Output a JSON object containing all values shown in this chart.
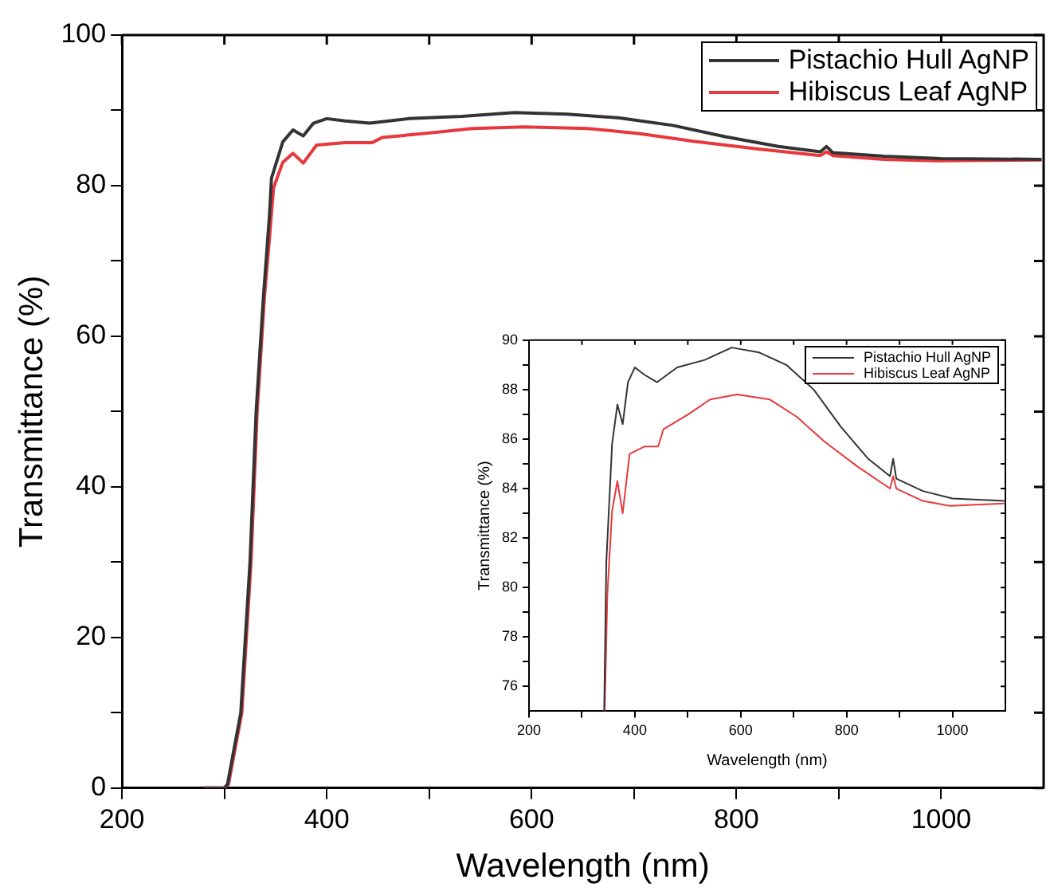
{
  "chart_data": [
    {
      "type": "line",
      "xlabel": "Wavelength (nm)",
      "ylabel": "Transmittance (%)",
      "xlim": [
        200,
        1100
      ],
      "ylim": [
        0,
        100
      ],
      "xticks": [
        200,
        {
          "value": 300,
          "label": null
        },
        400,
        {
          "value": 500,
          "label": null
        },
        600,
        {
          "value": 700,
          "label": null
        },
        800,
        {
          "value": 900,
          "label": null
        },
        1000
      ],
      "yticks": [
        0,
        {
          "value": 10,
          "label": null
        },
        20,
        {
          "value": 30,
          "label": null
        },
        40,
        {
          "value": 50,
          "label": null
        },
        60,
        {
          "value": 70,
          "label": null
        },
        80,
        {
          "value": 90,
          "label": null
        },
        100
      ],
      "legend": "top right",
      "series": [
        {
          "name": "Pistachio Hull AgNP",
          "color": "#333333",
          "x": [
            280,
            300,
            303,
            316,
            325,
            331,
            338,
            344,
            346,
            357,
            367,
            377,
            387,
            400,
            418,
            442,
            480,
            532,
            583,
            635,
            686,
            738,
            789,
            841,
            882,
            888,
            894,
            944,
            1000,
            1098
          ],
          "values": [
            0,
            0,
            0.5,
            10,
            30,
            50,
            65,
            76,
            81,
            85.8,
            87.4,
            86.6,
            88.3,
            88.9,
            88.6,
            88.3,
            88.9,
            89.2,
            89.7,
            89.5,
            89,
            88,
            86.5,
            85.2,
            84.5,
            85.2,
            84.4,
            83.9,
            83.6,
            83.5
          ]
        },
        {
          "name": "Hibiscus Leaf AgNP",
          "color": "#e8383d",
          "x": [
            280,
            300,
            304,
            317,
            326,
            332,
            339,
            344,
            348,
            357,
            367,
            377,
            390,
            418,
            444,
            454,
            501,
            542,
            593,
            655,
            706,
            758,
            820,
            882,
            888,
            894,
            944,
            995,
            1098
          ],
          "values": [
            0,
            0,
            0.5,
            10,
            30,
            50,
            65,
            73,
            79.7,
            83.1,
            84.3,
            83,
            85.4,
            85.7,
            85.7,
            86.4,
            87,
            87.6,
            87.8,
            87.6,
            86.9,
            85.9,
            84.9,
            84,
            84.5,
            84,
            83.5,
            83.3,
            83.4
          ]
        }
      ]
    },
    {
      "type": "line",
      "xlabel": "Wavelength (nm)",
      "ylabel": "Transmittance (%)",
      "xlim": [
        200,
        1100
      ],
      "ylim": [
        75,
        90
      ],
      "xticks": [
        200,
        {
          "value": 300,
          "label": null
        },
        400,
        {
          "value": 500,
          "label": null
        },
        600,
        {
          "value": 700,
          "label": null
        },
        800,
        {
          "value": 900,
          "label": null
        },
        1000
      ],
      "yticks": [
        76,
        {
          "value": 77,
          "label": null
        },
        78,
        {
          "value": 79,
          "label": null
        },
        80,
        {
          "value": 81,
          "label": null
        },
        82,
        {
          "value": 83,
          "label": null
        },
        84,
        {
          "value": 85,
          "label": null
        },
        86,
        {
          "value": 87,
          "label": null
        },
        88,
        {
          "value": 89,
          "label": null
        },
        90
      ],
      "legend": "top right",
      "series": [
        {
          "name": "Pistachio Hull AgNP",
          "color": "#333333",
          "x": [
            342,
            346,
            357,
            367,
            377,
            387,
            400,
            418,
            442,
            480,
            532,
            583,
            635,
            686,
            738,
            789,
            841,
            882,
            888,
            894,
            944,
            1000,
            1098
          ],
          "values": [
            75,
            81,
            85.8,
            87.4,
            86.6,
            88.3,
            88.9,
            88.6,
            88.3,
            88.9,
            89.2,
            89.7,
            89.5,
            89,
            88,
            86.5,
            85.2,
            84.5,
            85.2,
            84.4,
            83.9,
            83.6,
            83.5
          ]
        },
        {
          "name": "Hibiscus Leaf AgNP",
          "color": "#e8383d",
          "x": [
            343,
            348,
            357,
            367,
            377,
            390,
            418,
            444,
            454,
            501,
            542,
            593,
            655,
            706,
            758,
            820,
            882,
            888,
            894,
            944,
            995,
            1098
          ],
          "values": [
            75,
            79.7,
            83.1,
            84.3,
            83,
            85.4,
            85.7,
            85.7,
            86.4,
            87,
            87.6,
            87.8,
            87.6,
            86.9,
            85.9,
            84.9,
            84,
            84.5,
            84,
            83.5,
            83.3,
            83.4
          ]
        }
      ]
    }
  ]
}
